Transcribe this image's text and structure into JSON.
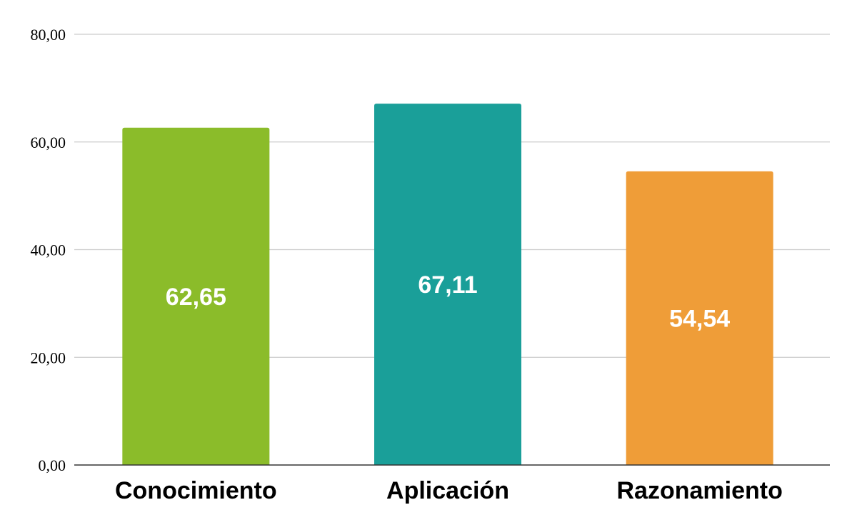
{
  "chart_data": {
    "type": "bar",
    "categories": [
      "Conocimiento",
      "Aplicación",
      "Razonamiento"
    ],
    "values": [
      62.65,
      67.11,
      54.54
    ],
    "data_labels": [
      "62,65",
      "67,11",
      "54,54"
    ],
    "colors": [
      "#8BBC2A",
      "#1A9F99",
      "#EF9D38"
    ],
    "ylim": [
      0,
      80
    ],
    "yticks": [
      {
        "value": 0,
        "label": "0,00"
      },
      {
        "value": 20,
        "label": "20,00"
      },
      {
        "value": 40,
        "label": "40,00"
      },
      {
        "value": 60,
        "label": "60,00"
      },
      {
        "value": 80,
        "label": "80,00"
      }
    ],
    "title": "",
    "xlabel": "",
    "ylabel": "",
    "grid": true,
    "legend": "none"
  }
}
